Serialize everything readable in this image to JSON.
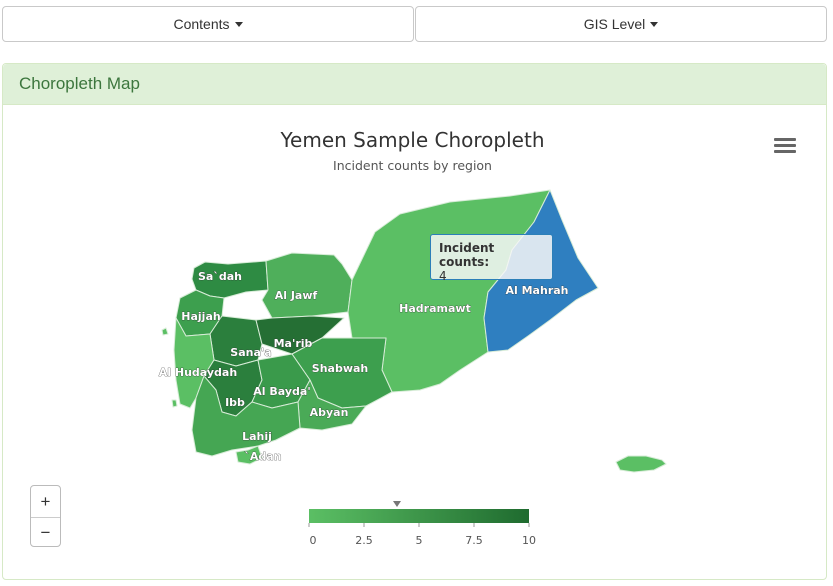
{
  "toolbar": {
    "contents_label": "Contents",
    "gis_label": "GIS Level"
  },
  "panel": {
    "title": "Choropleth Map"
  },
  "map": {
    "title": "Yemen Sample Choropleth",
    "subtitle": "Incident counts by region",
    "menu_icon": "hamburger-menu-icon",
    "tooltip": {
      "series": "Incident counts:",
      "value": "4"
    },
    "zoom": {
      "in_label": "+",
      "out_label": "−"
    },
    "colors": {
      "low": "#5bbf64",
      "high": "#1f6b2f",
      "highlight": "#2f7fc0",
      "boundary": "#d7ecd7"
    }
  },
  "chart_data": {
    "type": "map",
    "series_name": "Incident counts",
    "color_scale": {
      "min": 0,
      "max": 10,
      "ticks": [
        "0",
        "2.5",
        "5",
        "7.5",
        "10"
      ],
      "min_color": "#5bbf64",
      "max_color": "#1f6b2f"
    },
    "hovered_region": "Al Mahrah",
    "hovered_value": 4,
    "regions": [
      {
        "name": "Sa`dah"
      },
      {
        "name": "Al Jawf"
      },
      {
        "name": "Hajjah"
      },
      {
        "name": "Hadramawt"
      },
      {
        "name": "Al Mahrah"
      },
      {
        "name": "Sana'a"
      },
      {
        "name": "Ma'rib"
      },
      {
        "name": "Al Hudaydah"
      },
      {
        "name": "Shabwah"
      },
      {
        "name": "Ibb"
      },
      {
        "name": "Al Bayda'"
      },
      {
        "name": "Abyan"
      },
      {
        "name": "Lahij"
      },
      {
        "name": "`Adan"
      }
    ]
  }
}
